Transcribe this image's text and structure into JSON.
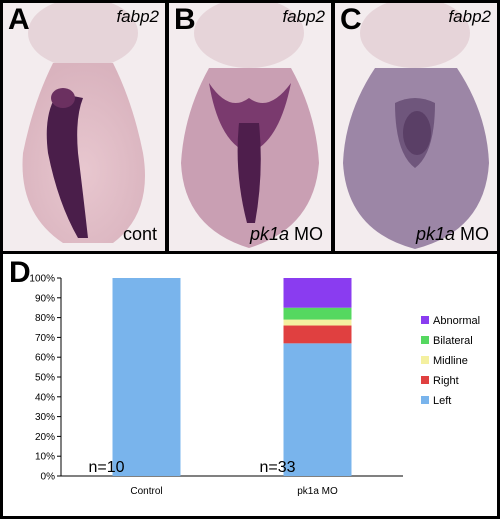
{
  "panels": [
    {
      "label": "A",
      "gene": "fabp2",
      "condition_italic": "",
      "condition_rest": "cont"
    },
    {
      "label": "B",
      "gene": "fabp2",
      "condition_italic": "pk1a",
      "condition_rest": " MO"
    },
    {
      "label": "C",
      "gene": "fabp2",
      "condition_italic": "pk1a",
      "condition_rest": " MO"
    }
  ],
  "chart_label": "D",
  "chart_data": {
    "type": "bar",
    "stacked": true,
    "categories": [
      "Control",
      "pk1a MO"
    ],
    "n_labels": [
      "n=10",
      "n=33"
    ],
    "ylim": [
      0,
      100
    ],
    "yticks": [
      "0%",
      "10%",
      "20%",
      "30%",
      "40%",
      "50%",
      "60%",
      "70%",
      "80%",
      "90%",
      "100%"
    ],
    "series": [
      {
        "name": "Left",
        "color": "#79b4ec",
        "values": [
          100,
          67
        ]
      },
      {
        "name": "Right",
        "color": "#e04040",
        "values": [
          0,
          9
        ]
      },
      {
        "name": "Midline",
        "color": "#f4f0a0",
        "values": [
          0,
          3
        ]
      },
      {
        "name": "Bilateral",
        "color": "#55d860",
        "values": [
          0,
          6
        ]
      },
      {
        "name": "Abnormal",
        "color": "#8a3cf0",
        "values": [
          0,
          15
        ]
      }
    ],
    "legend_position": "right",
    "grid": false
  }
}
